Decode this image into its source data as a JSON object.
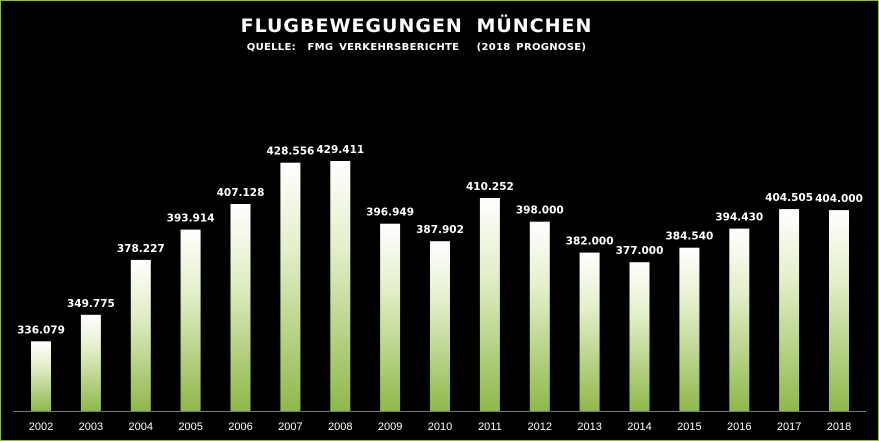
{
  "chart_data": {
    "type": "bar",
    "title": "FLUGBEWEGUNGEN  MÜNCHEN",
    "subtitle": "QUELLE:  FMG VERKEHRSBERICHTE   (2018 PROGNOSE)",
    "categories": [
      "2002",
      "2003",
      "2004",
      "2005",
      "2006",
      "2007",
      "2008",
      "2009",
      "2010",
      "2011",
      "2012",
      "2013",
      "2014",
      "2015",
      "2016",
      "2017",
      "2018"
    ],
    "values": [
      336079,
      349775,
      378227,
      393914,
      407128,
      428556,
      429411,
      396949,
      387902,
      410252,
      398000,
      382000,
      377000,
      384540,
      394430,
      404505,
      404000
    ],
    "value_labels": [
      "336.079",
      "349.775",
      "378.227",
      "393.914",
      "407.128",
      "428.556",
      "429.411",
      "396.949",
      "387.902",
      "410.252",
      "398.000",
      "382.000",
      "377.000",
      "384.540",
      "394.430",
      "404.505",
      "404.000"
    ],
    "xlabel": "",
    "ylabel": "",
    "ylim": [
      300000,
      440000
    ],
    "grid": false,
    "legend": "none",
    "colors": {
      "background": "#000000",
      "border": "#8bbf3a",
      "bar_top": "#ffffff",
      "bar_bottom": "#8fb84a",
      "axis": "#7a7a7a",
      "text": "#ffffff"
    }
  }
}
